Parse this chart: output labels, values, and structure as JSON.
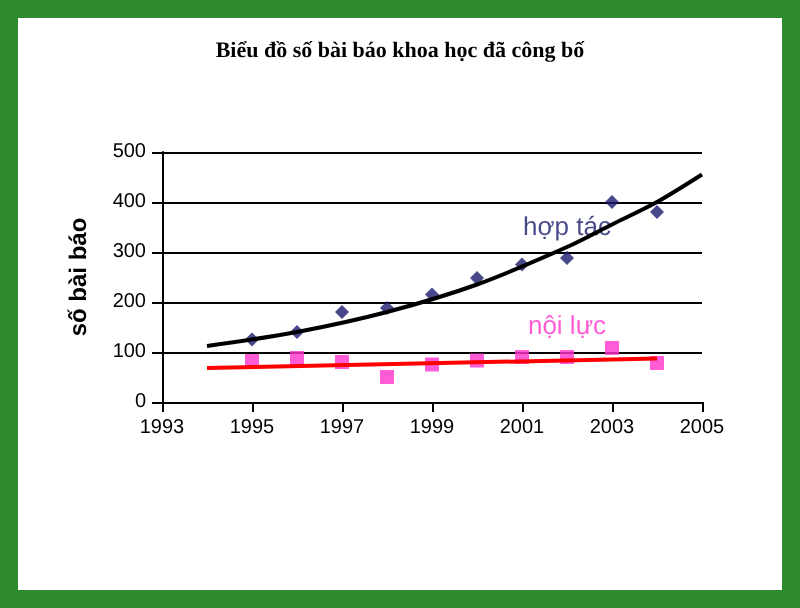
{
  "chart_data": {
    "type": "scatter",
    "title": "Biểu đồ số bài báo khoa học đã công bố",
    "ylabel": "số bài báo",
    "xlim": [
      1993,
      2005
    ],
    "xticks": [
      1993,
      1995,
      1997,
      1999,
      2001,
      2003,
      2005
    ],
    "ylim": [
      0,
      500
    ],
    "yticks": [
      0,
      100,
      200,
      300,
      400,
      500
    ],
    "grid": "y",
    "x": [
      1995,
      1996,
      1997,
      1998,
      1999,
      2000,
      2001,
      2002,
      2003,
      2004
    ],
    "series": [
      {
        "name": "hợp tác",
        "color": "#1a1a6e",
        "marker": "diamond",
        "values": [
          125,
          140,
          180,
          188,
          215,
          248,
          275,
          288,
          400,
          380
        ]
      },
      {
        "name": "nội lực",
        "color": "#ff33cc",
        "marker": "square",
        "values": [
          82,
          88,
          80,
          50,
          75,
          83,
          90,
          90,
          108,
          78
        ]
      },
      {
        "type": "line",
        "color": "#000000",
        "x": [
          1994,
          1996,
          1998,
          2000,
          2002,
          2003,
          2004,
          2005
        ],
        "values": [
          112,
          140,
          180,
          235,
          310,
          355,
          400,
          455
        ]
      },
      {
        "type": "line",
        "color": "#ff0000",
        "x": [
          1994,
          2004
        ],
        "values": [
          68,
          87
        ]
      }
    ]
  }
}
